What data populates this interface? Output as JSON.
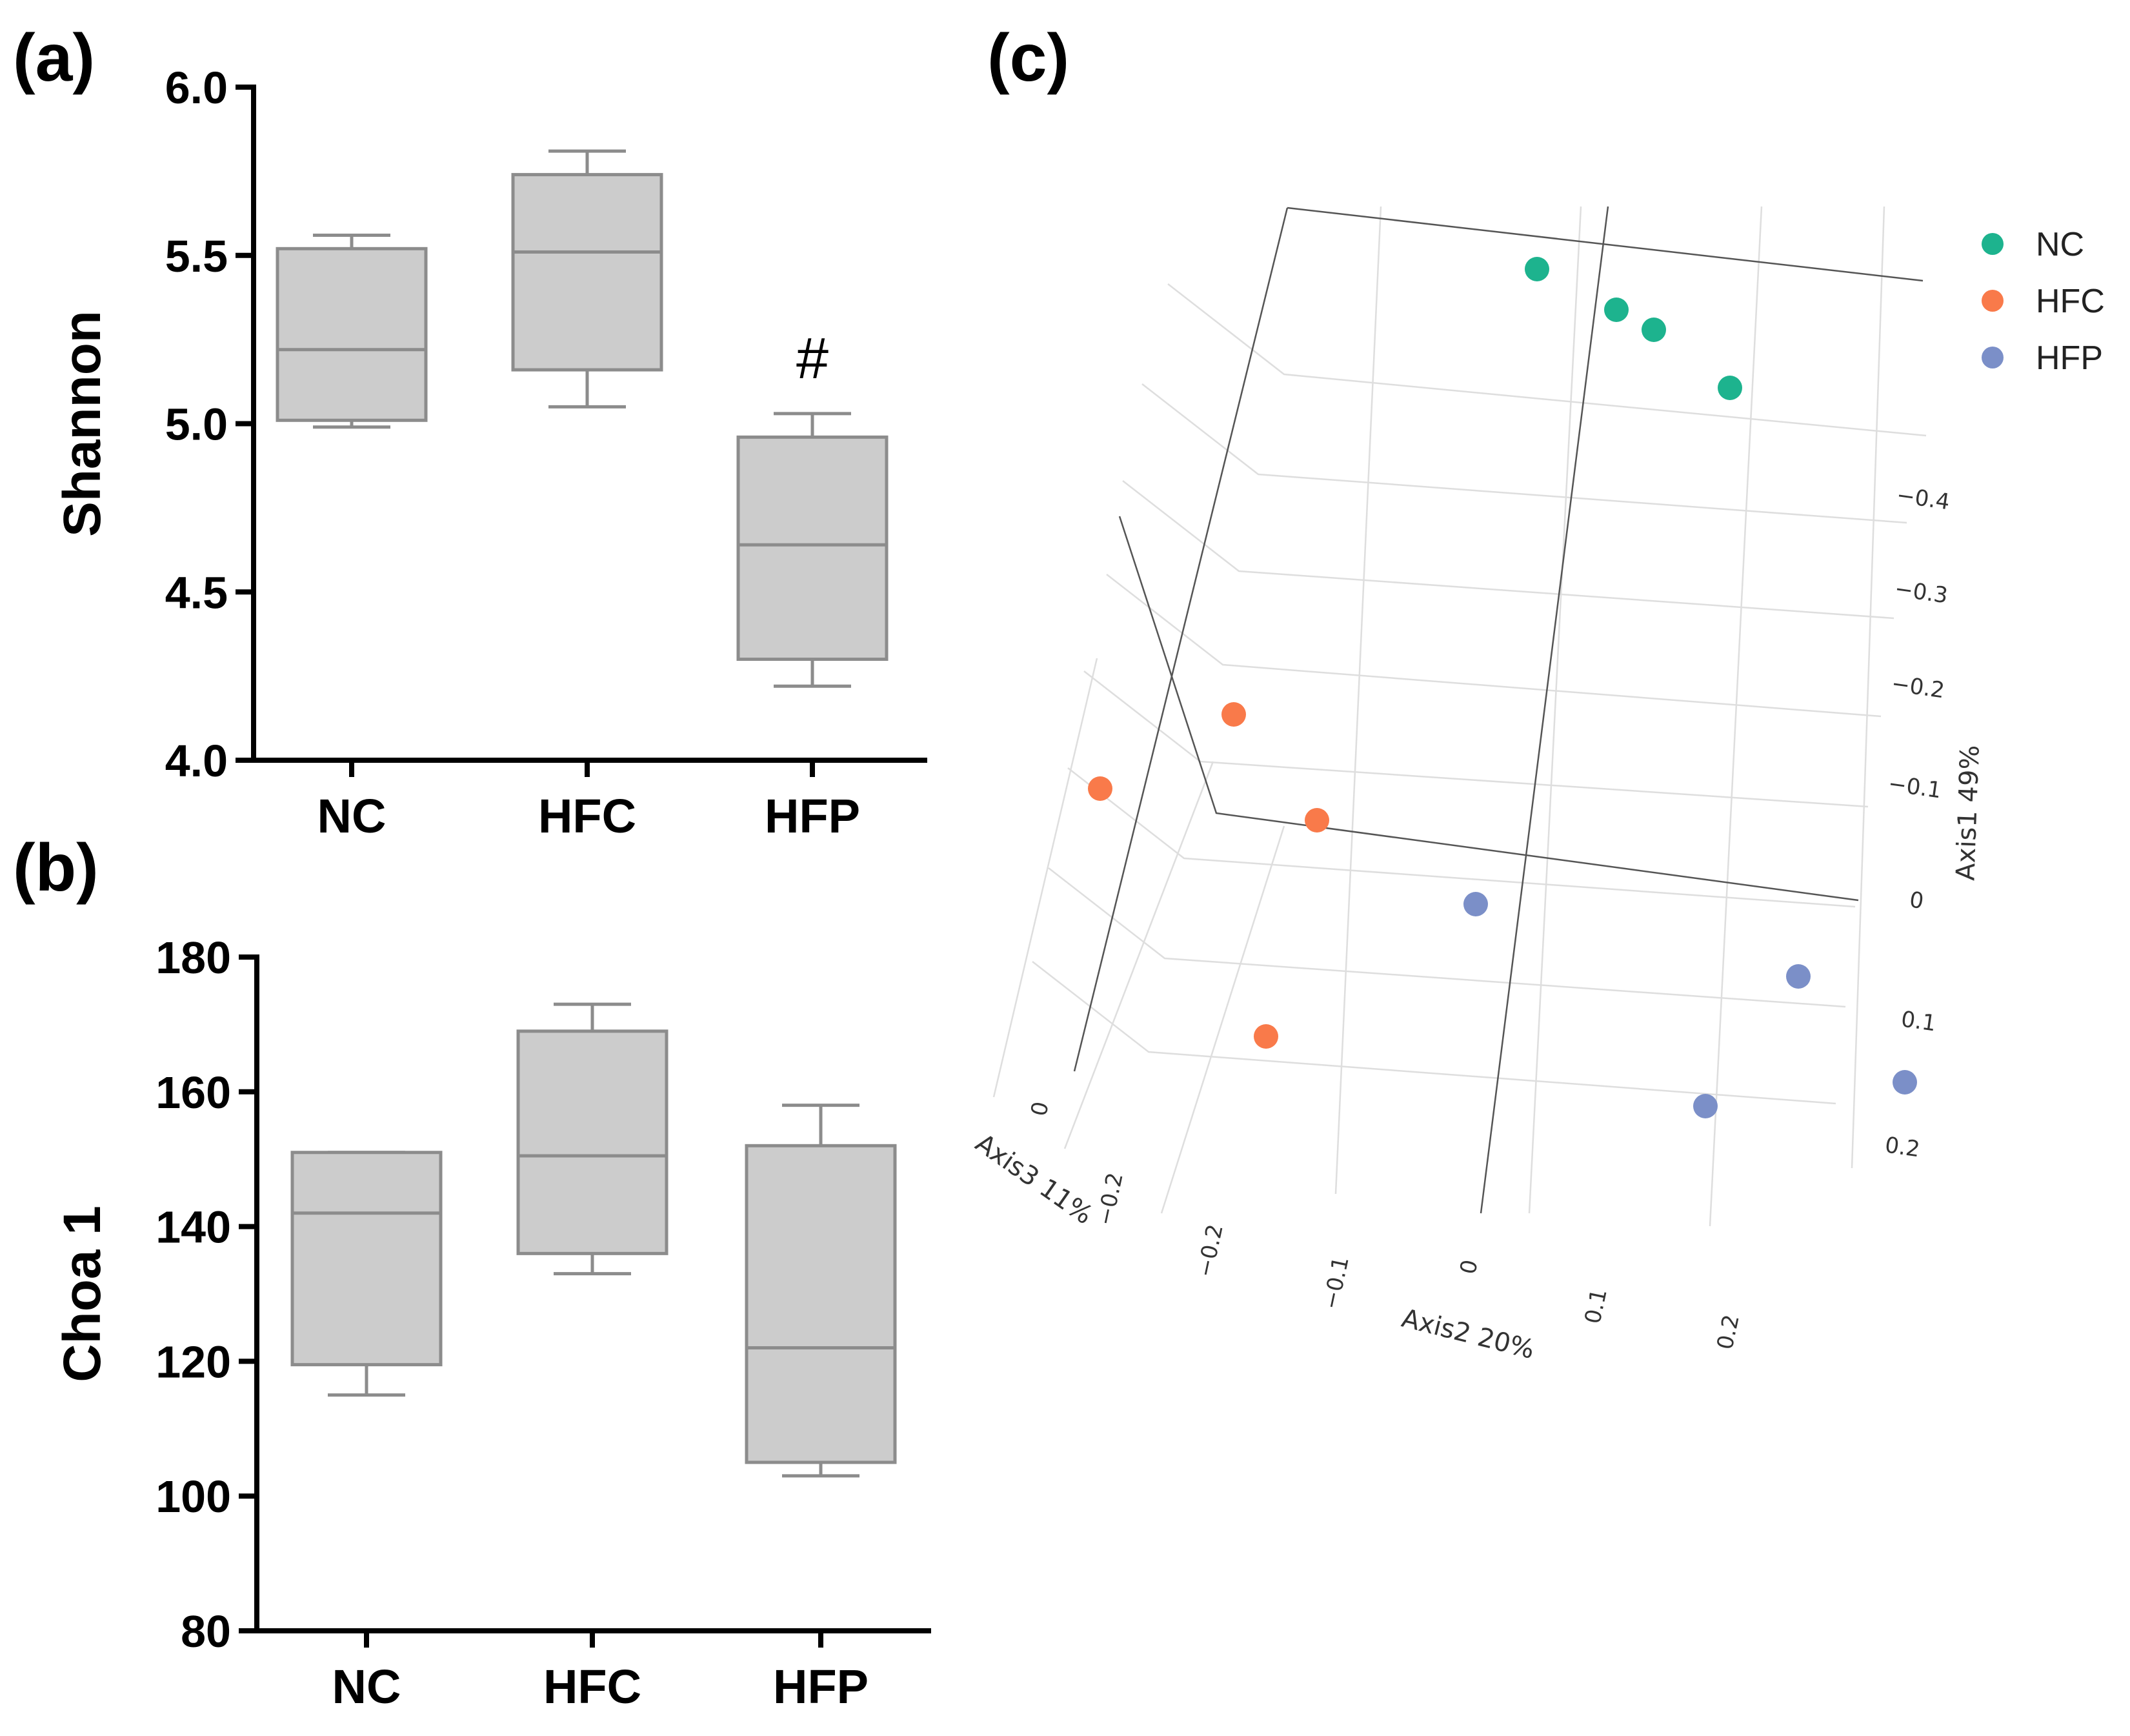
{
  "panels": {
    "a": {
      "label": "(a)"
    },
    "b": {
      "label": "(b)"
    },
    "c": {
      "label": "(c)"
    }
  },
  "chart_data": [
    {
      "id": "a",
      "type": "box",
      "ylabel": "Shannon",
      "ylim": [
        4.0,
        6.0
      ],
      "yticks": [
        "4.0",
        "4.5",
        "5.0",
        "5.5",
        "6.0"
      ],
      "ytick_values": [
        4.0,
        4.5,
        5.0,
        5.5,
        6.0
      ],
      "categories": [
        "NC",
        "HFC",
        "HFP"
      ],
      "boxes": [
        {
          "group": "NC",
          "min": 4.99,
          "q1": 5.01,
          "median": 5.22,
          "q3": 5.52,
          "max": 5.56
        },
        {
          "group": "HFC",
          "min": 5.05,
          "q1": 5.16,
          "median": 5.51,
          "q3": 5.74,
          "max": 5.81
        },
        {
          "group": "HFP",
          "min": 4.22,
          "q1": 4.3,
          "median": 4.64,
          "q3": 4.96,
          "max": 5.03
        }
      ],
      "annotations": [
        {
          "group": "HFP",
          "text": "#"
        }
      ]
    },
    {
      "id": "b",
      "type": "box",
      "ylabel": "Choa 1",
      "ylim": [
        80,
        180
      ],
      "yticks": [
        "80",
        "100",
        "120",
        "140",
        "160",
        "180"
      ],
      "ytick_values": [
        80,
        100,
        120,
        140,
        160,
        180
      ],
      "categories": [
        "NC",
        "HFC",
        "HFP"
      ],
      "boxes": [
        {
          "group": "NC",
          "min": 115,
          "q1": 119.5,
          "median": 142,
          "q3": 151,
          "max": 151
        },
        {
          "group": "HFC",
          "min": 133,
          "q1": 136,
          "median": 150.5,
          "q3": 169,
          "max": 173
        },
        {
          "group": "HFP",
          "min": 103,
          "q1": 105,
          "median": 122,
          "q3": 152,
          "max": 158
        }
      ]
    },
    {
      "id": "c",
      "type": "scatter3d",
      "axes": {
        "axis1": {
          "label": "Axis1 49%",
          "ticks": [
            "−0.4",
            "−0.3",
            "−0.2",
            "−0.1",
            "0",
            "0.1",
            "0.2"
          ]
        },
        "axis2": {
          "label": "Axis2 20%",
          "ticks": [
            "−0.2",
            "−0.1",
            "0",
            "0.1",
            "0.2"
          ]
        },
        "axis3": {
          "label": "Axis3 11%",
          "ticks": [
            "0",
            "−0.2"
          ]
        }
      },
      "legend": [
        {
          "name": "NC",
          "color": "#1db38e"
        },
        {
          "name": "HFC",
          "color": "#f97a4a"
        },
        {
          "name": "HFP",
          "color": "#7b8fc8"
        }
      ],
      "series": [
        {
          "name": "NC",
          "points": [
            {
              "axis1": -0.46,
              "axis2": 0.02,
              "axis3": -0.18
            },
            {
              "axis1": -0.44,
              "axis2": 0.09,
              "axis3": -0.2
            },
            {
              "axis1": -0.42,
              "axis2": 0.12,
              "axis3": -0.18
            },
            {
              "axis1": -0.38,
              "axis2": 0.19,
              "axis3": -0.15
            }
          ]
        },
        {
          "name": "HFC",
          "points": [
            {
              "axis1": -0.13,
              "axis2": -0.19,
              "axis3": -0.06
            },
            {
              "axis1": -0.07,
              "axis2": -0.28,
              "axis3": -0.05
            },
            {
              "axis1": -0.05,
              "axis2": -0.14,
              "axis3": -0.12
            },
            {
              "axis1": 0.12,
              "axis2": -0.17,
              "axis3": -0.04
            }
          ]
        },
        {
          "name": "HFP",
          "points": [
            {
              "axis1": 0.0,
              "axis2": -0.01,
              "axis3": -0.12
            },
            {
              "axis1": 0.08,
              "axis2": 0.21,
              "axis3": -0.1
            },
            {
              "axis1": 0.16,
              "axis2": 0.17,
              "axis3": -0.02
            },
            {
              "axis1": 0.16,
              "axis2": 0.27,
              "axis3": -0.08
            }
          ]
        }
      ]
    }
  ]
}
